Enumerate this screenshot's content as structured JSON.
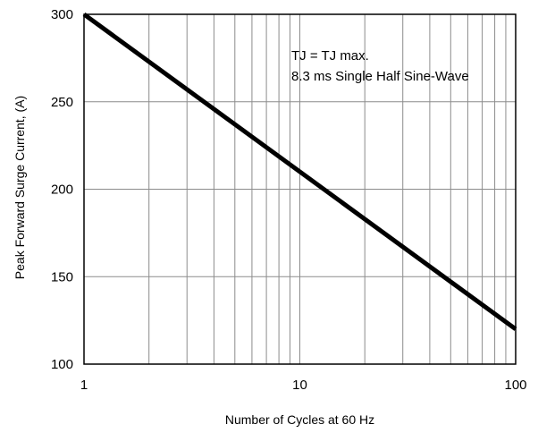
{
  "chart_data": {
    "type": "line",
    "xscale": "log",
    "xlim": [
      1,
      100
    ],
    "ylim": [
      100,
      300
    ],
    "xlabel": "Number of Cycles at 60 Hz",
    "ylabel": "Peak Forward Surge Current, (A)",
    "x_ticks": [
      1,
      10,
      100
    ],
    "x_tick_labels": [
      "1",
      "10",
      "100"
    ],
    "y_ticks": [
      100,
      150,
      200,
      250,
      300
    ],
    "y_tick_labels": [
      "100",
      "150",
      "200",
      "250",
      "300"
    ],
    "grid": true,
    "series": [
      {
        "x": [
          1,
          100
        ],
        "y": [
          300,
          120
        ]
      }
    ],
    "annotations": [
      "TJ = TJ max.",
      "8.3 ms Single Half Sine-Wave"
    ],
    "line_color": "#000000"
  }
}
